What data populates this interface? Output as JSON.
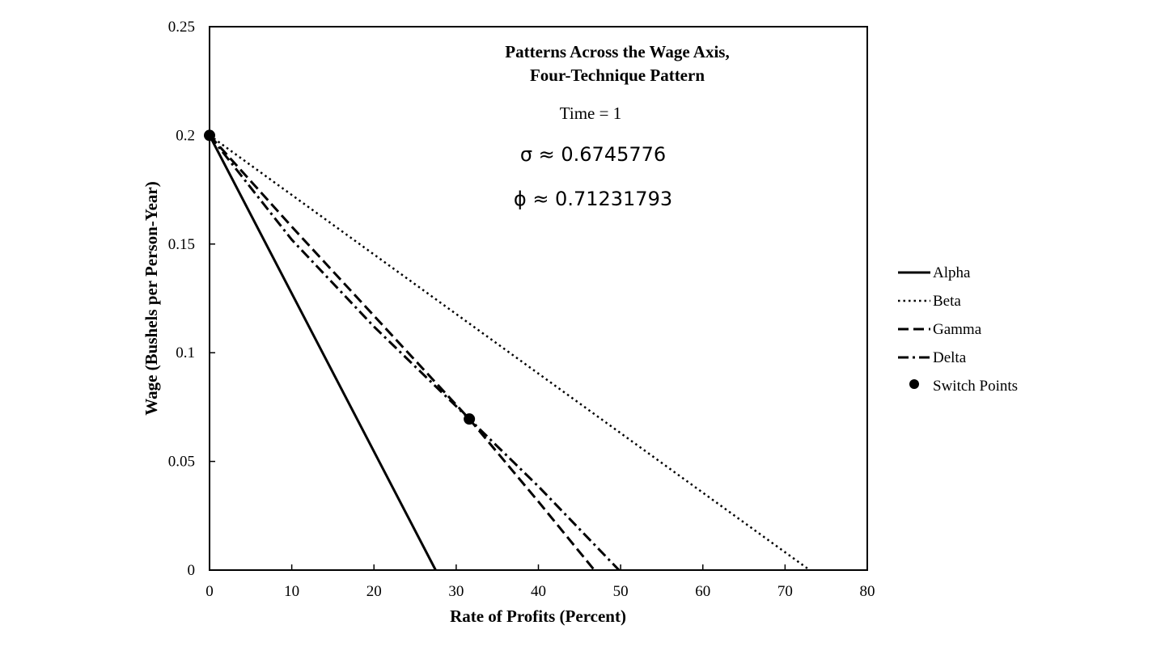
{
  "chart_data": {
    "type": "line",
    "title_lines": [
      "Patterns Across the Wage Axis,",
      "Four-Technique Pattern"
    ],
    "annotations": {
      "time": "Time = 1",
      "sigma": "σ ≈ 0.6745776",
      "phi": "ϕ ≈ 0.71231793"
    },
    "xlabel": "Rate of Profits (Percent)",
    "ylabel": "Wage (Bushels per Person-Year)",
    "xlim": [
      0,
      80
    ],
    "ylim": [
      0,
      0.25
    ],
    "x_ticks": [
      "0",
      "10",
      "20",
      "30",
      "40",
      "50",
      "60",
      "70",
      "80"
    ],
    "y_ticks": [
      "0",
      "0.05",
      "0.1",
      "0.15",
      "0.2",
      "0.25"
    ],
    "grid": false,
    "legend_position": "right",
    "series": [
      {
        "name": "Alpha",
        "style": "solid",
        "x": [
          0,
          27.5
        ],
        "y": [
          0.2,
          0
        ]
      },
      {
        "name": "Beta",
        "style": "dotted",
        "x": [
          0,
          73
        ],
        "y": [
          0.2,
          0
        ]
      },
      {
        "name": "Gamma",
        "style": "dashed",
        "x": [
          0,
          10,
          20,
          31.6,
          40,
          46.8
        ],
        "y": [
          0.2,
          0.158,
          0.117,
          0.0695,
          0.0315,
          0
        ]
      },
      {
        "name": "Delta",
        "style": "dashdot",
        "x": [
          0,
          10,
          20,
          31.6,
          40,
          49.8
        ],
        "y": [
          0.2,
          0.152,
          0.112,
          0.0695,
          0.0385,
          0
        ]
      }
    ],
    "switch_points": {
      "name": "Switch Points",
      "points": [
        {
          "x": 0,
          "y": 0.2
        },
        {
          "x": 31.6,
          "y": 0.0695
        }
      ]
    }
  }
}
